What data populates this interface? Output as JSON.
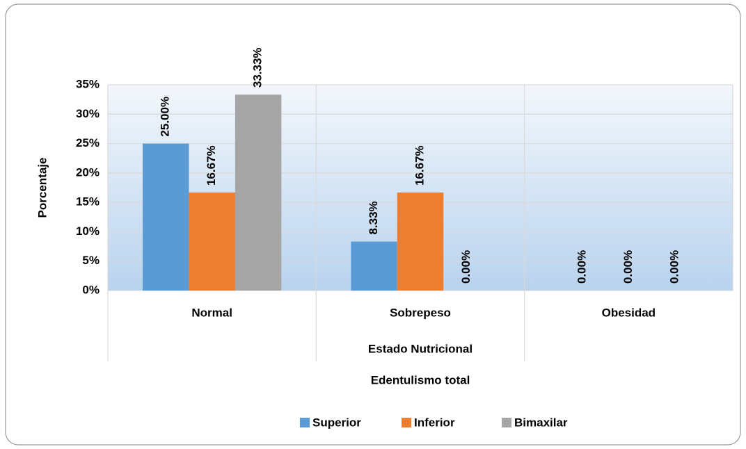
{
  "chart_data": {
    "type": "bar",
    "ylabel": "Porcentaje",
    "xlabel": "Estado Nutricional",
    "legend_title": "Edentulismo total",
    "categories": [
      "Normal",
      "Sobrepeso",
      "Obesidad"
    ],
    "series": [
      {
        "name": "Superior",
        "color": "#5b9bd5",
        "values": [
          25.0,
          8.33,
          0.0
        ],
        "value_labels": [
          "25.00%",
          "8.33%",
          "0.00%"
        ]
      },
      {
        "name": "Inferior",
        "color": "#ed7d31",
        "values": [
          16.67,
          16.67,
          0.0
        ],
        "value_labels": [
          "16.67%",
          "16.67%",
          "0.00%"
        ]
      },
      {
        "name": "Bimaxilar",
        "color": "#a5a5a5",
        "values": [
          33.33,
          0.0,
          0.0
        ],
        "value_labels": [
          "33.33%",
          "0.00%",
          "0.00%"
        ]
      }
    ],
    "ylim": [
      0,
      35
    ],
    "yticks": [
      {
        "value": 0,
        "label": "0%"
      },
      {
        "value": 5,
        "label": "5%"
      },
      {
        "value": 10,
        "label": "10%"
      },
      {
        "value": 15,
        "label": "15%"
      },
      {
        "value": 20,
        "label": "20%"
      },
      {
        "value": 25,
        "label": "25%"
      },
      {
        "value": 30,
        "label": "30%"
      },
      {
        "value": 35,
        "label": "35%"
      }
    ],
    "grid": true,
    "legend": "bottom"
  }
}
